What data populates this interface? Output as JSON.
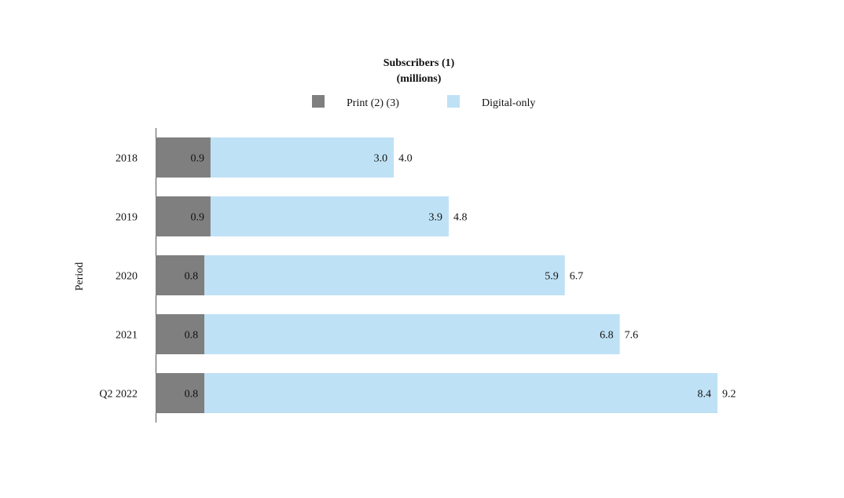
{
  "chart_data": {
    "type": "bar",
    "orientation": "horizontal",
    "stacked": true,
    "title": "Subscribers (1)",
    "subtitle": "(millions)",
    "ylabel": "Period",
    "categories": [
      "2018",
      "2019",
      "2020",
      "2021",
      "Q2 2022"
    ],
    "series": [
      {
        "name": "Print (2) (3)",
        "color": "#7f7f7f",
        "values": [
          0.9,
          0.9,
          0.8,
          0.8,
          0.8
        ]
      },
      {
        "name": "Digital-only",
        "color": "#bfe1f5",
        "values": [
          3.0,
          3.9,
          5.9,
          6.8,
          8.4
        ]
      }
    ],
    "total_labels": [
      "4.0",
      "4.8",
      "6.7",
      "7.6",
      "9.2"
    ],
    "print_labels": [
      "0.9",
      "0.9",
      "0.8",
      "0.8",
      "0.8"
    ],
    "digital_labels": [
      "3.0",
      "3.9",
      "5.9",
      "6.8",
      "8.4"
    ],
    "xlim": [
      0,
      9.2
    ],
    "legend_position": "top",
    "grid": false
  }
}
